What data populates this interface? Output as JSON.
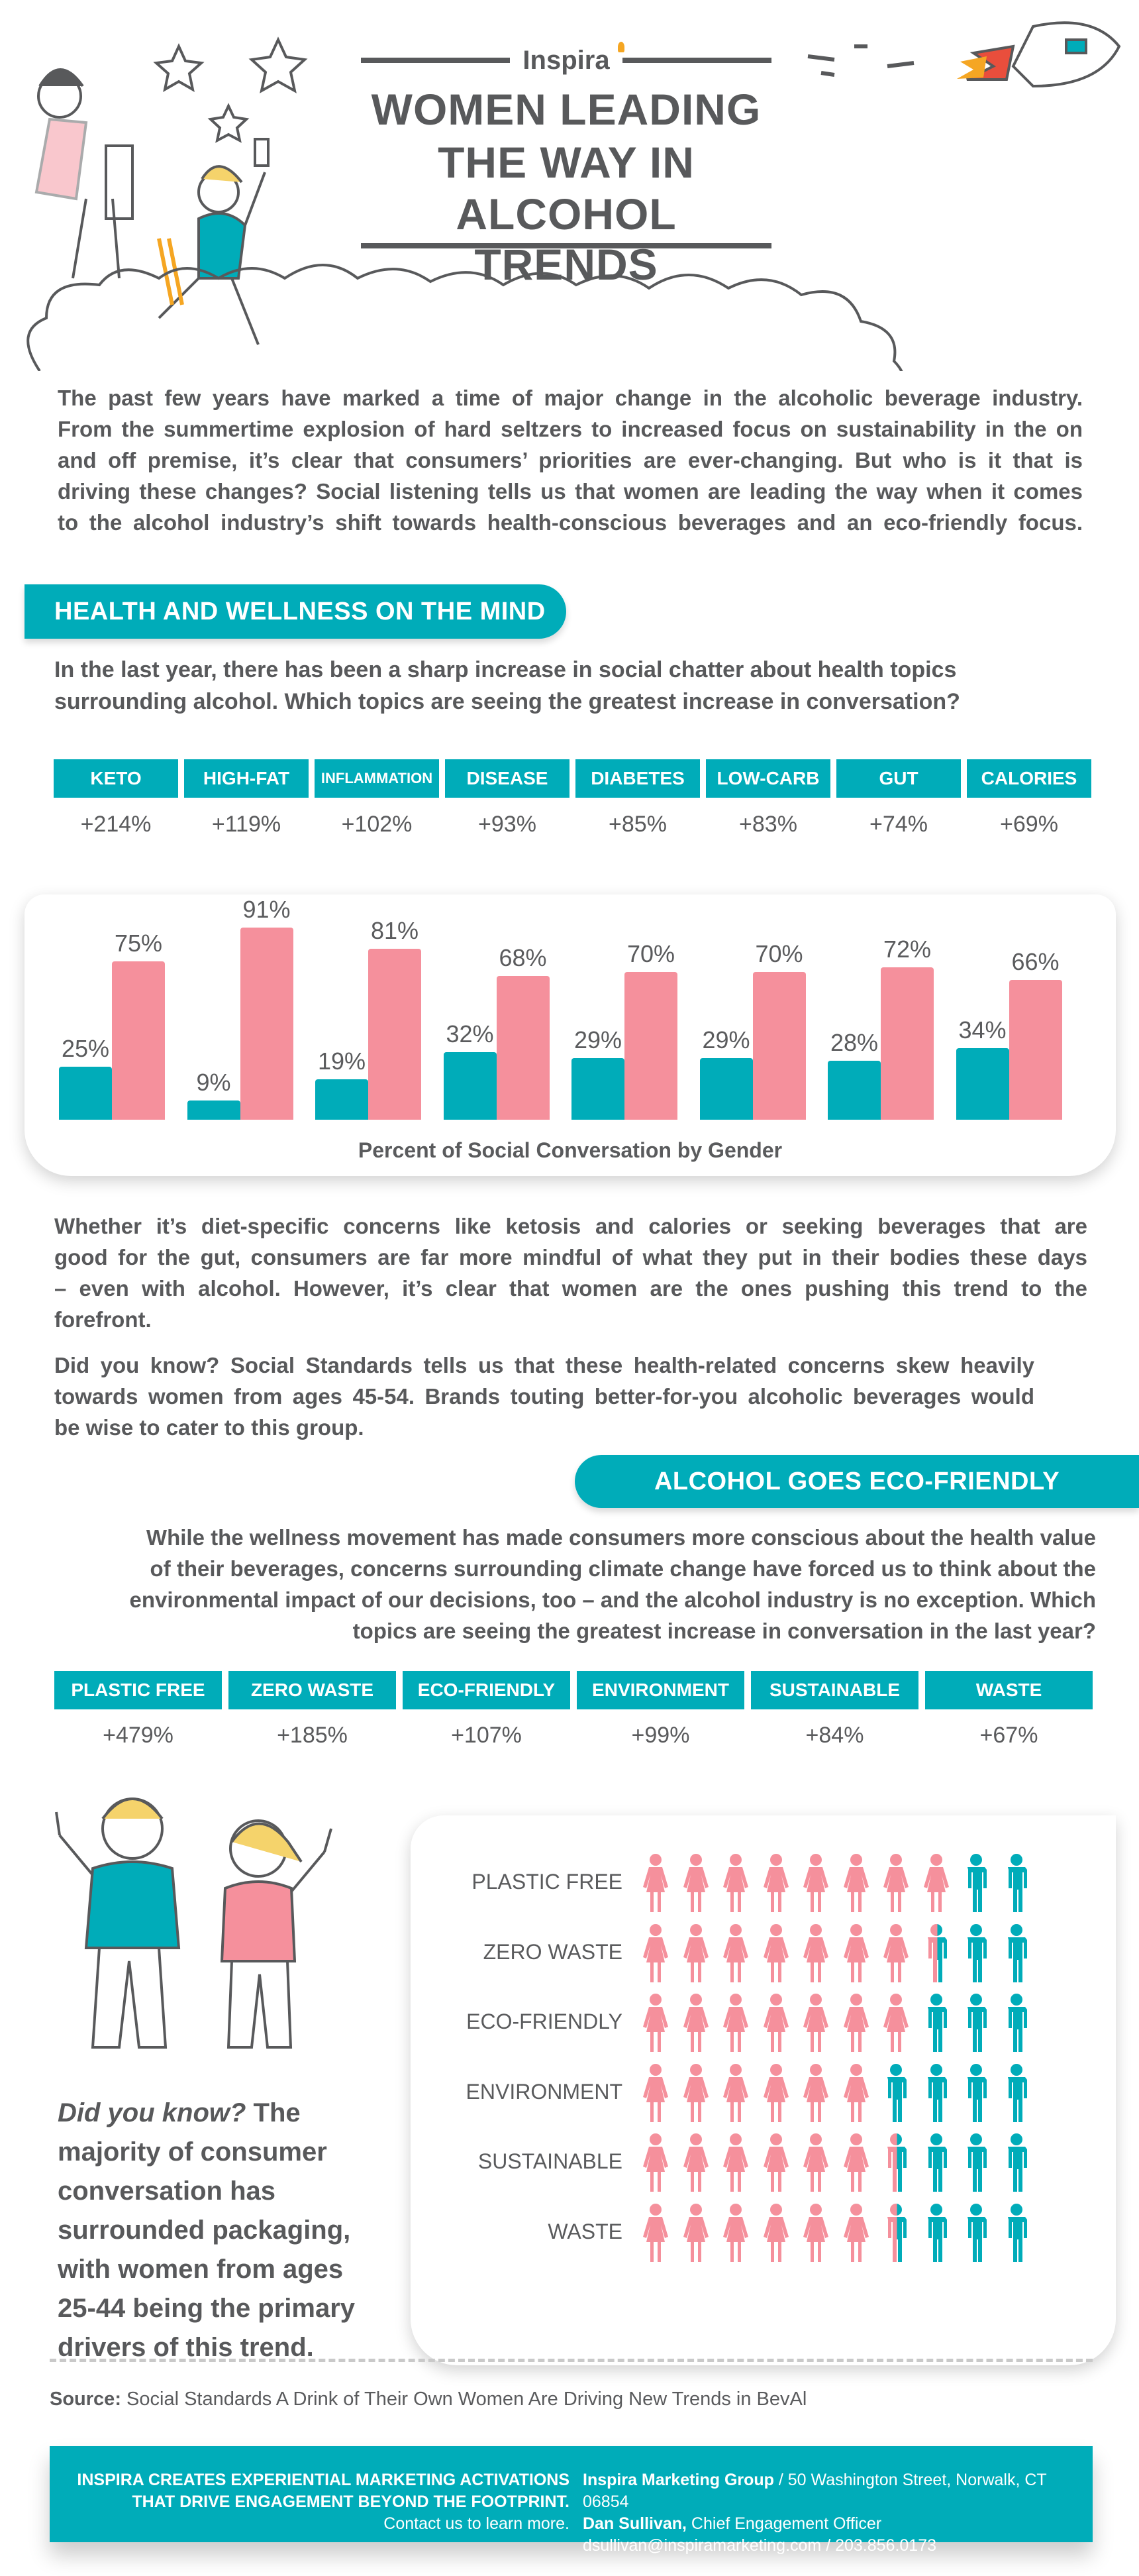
{
  "header": {
    "brand": "Inspira",
    "title_lines": [
      "WOMEN LEADING",
      "THE WAY IN",
      "ALCOHOL TRENDS"
    ]
  },
  "intro": {
    "lines": [
      "The past few years have marked a time of major change in the alcoholic beverage industry.",
      "From the summertime explosion of hard seltzers to increased focus on sustainability in the on",
      "and off premise, it’s clear that consumers’ priorities are ever-changing. But who is it that is",
      "driving these changes? Social listening tells us that women are leading the way when it comes",
      "to the alcohol industry’s shift towards health-conscious beverages and an eco-friendly focus."
    ]
  },
  "health": {
    "banner": "HEALTH AND WELLNESS ON THE MIND",
    "question_lines": [
      "In the last year, there has been a sharp increase in social chatter about health topics",
      "surrounding alcohol. Which topics are seeing the greatest increase in conversation?"
    ],
    "topics": [
      {
        "label": "KETO",
        "increase": "+214%"
      },
      {
        "label": "HIGH-FAT",
        "increase": "+119%"
      },
      {
        "label": "INFLAMMATION",
        "increase": "+102%"
      },
      {
        "label": "DISEASE",
        "increase": "+93%"
      },
      {
        "label": "DIABETES",
        "increase": "+85%"
      },
      {
        "label": "LOW-CARB",
        "increase": "+83%"
      },
      {
        "label": "GUT",
        "increase": "+74%"
      },
      {
        "label": "CALORIES",
        "increase": "+69%"
      }
    ],
    "para1_lines": [
      "Whether it’s diet-specific concerns like ketosis and calories or seeking beverages that are",
      "good for the gut, consumers are far more mindful of what they put in their bodies these days",
      "– even with alcohol. However, it’s clear that women are the ones pushing this trend to the",
      "forefront."
    ],
    "para2_lines": [
      "Did you know? Social Standards tells us that these health-related concerns skew heavily",
      "towards women from ages 45-54. Brands touting better-for-you alcoholic beverages would",
      "be wise to cater to this group."
    ]
  },
  "chart_data": [
    {
      "type": "bar",
      "title": "",
      "xlabel": "Percent of Social Conversation by Gender",
      "ylim": [
        0,
        100
      ],
      "grid": false,
      "categories": [
        "KETO",
        "HIGH-FAT",
        "INFLAMMATION",
        "DISEASE",
        "DIABETES",
        "LOW-CARB",
        "GUT",
        "CALORIES"
      ],
      "series": [
        {
          "values": [
            25,
            9,
            19,
            32,
            29,
            29,
            28,
            34
          ],
          "color": "#00acb9"
        },
        {
          "values": [
            75,
            91,
            81,
            68,
            70,
            70,
            72,
            66
          ],
          "color": "#f5909c"
        }
      ],
      "labels": [
        [
          "25%",
          "9%",
          "19%",
          "32%",
          "29%",
          "29%",
          "28%",
          "34%"
        ],
        [
          "75%",
          "91%",
          "81%",
          "68%",
          "70%",
          "70%",
          "72%",
          "66%"
        ]
      ]
    },
    {
      "type": "pictogram",
      "units": 10,
      "categories": [
        "PLASTIC FREE",
        "ZERO WASTE",
        "ECO-FRIENDLY",
        "ENVIRONMENT",
        "SUSTAINABLE",
        "WASTE"
      ],
      "women_units": [
        8,
        7.5,
        7,
        6,
        6.5,
        6.5
      ],
      "colors": {
        "women": "#f5909c",
        "men": "#00acb9"
      }
    }
  ],
  "eco": {
    "banner": "ALCOHOL GOES ECO-FRIENDLY",
    "question_lines": [
      "While the wellness movement has made consumers more conscious about the health value",
      "of their beverages, concerns surrounding climate change have forced us to think about the",
      "environmental impact of our decisions, too – and the alcohol industry is no exception. Which",
      "topics are seeing the greatest increase in conversation in the last year?"
    ],
    "topics": [
      {
        "label": "PLASTIC FREE",
        "increase": "+479%"
      },
      {
        "label": "ZERO WASTE",
        "increase": "+185%"
      },
      {
        "label": "ECO-FRIENDLY",
        "increase": "+107%"
      },
      {
        "label": "ENVIRONMENT",
        "increase": "+99%"
      },
      {
        "label": "SUSTAINABLE",
        "increase": "+84%"
      },
      {
        "label": "WASTE",
        "increase": "+67%"
      }
    ],
    "did_you_know": "Did you know?",
    "dyk_lines": [
      " The",
      "majority of consumer",
      "conversation has",
      "surrounded packaging,",
      "with women from ages",
      "25-44 being the primary",
      "drivers of this trend."
    ]
  },
  "source": {
    "label": "Source:",
    "text": " Social Standards A Drink of Their Own Women Are Driving New Trends in BevAl"
  },
  "footer": {
    "tagline_lines": [
      "INSPIRA CREATES EXPERIENTIAL MARKETING ACTIVATIONS",
      "THAT DRIVE ENGAGEMENT BEYOND THE FOOTPRINT."
    ],
    "cta": "Contact us to learn more.",
    "company": "Inspira Marketing Group",
    "address": " / 50 Washington Street, Norwalk, CT 06854",
    "contact_name": "Dan Sullivan,",
    "contact_title": " Chief Engagement Officer",
    "contact_line": "dsullivan@inspiramarketing.com / 203.856.0173"
  },
  "colors": {
    "teal": "#00acb9",
    "pink": "#f5909c",
    "text": "#58595b"
  }
}
